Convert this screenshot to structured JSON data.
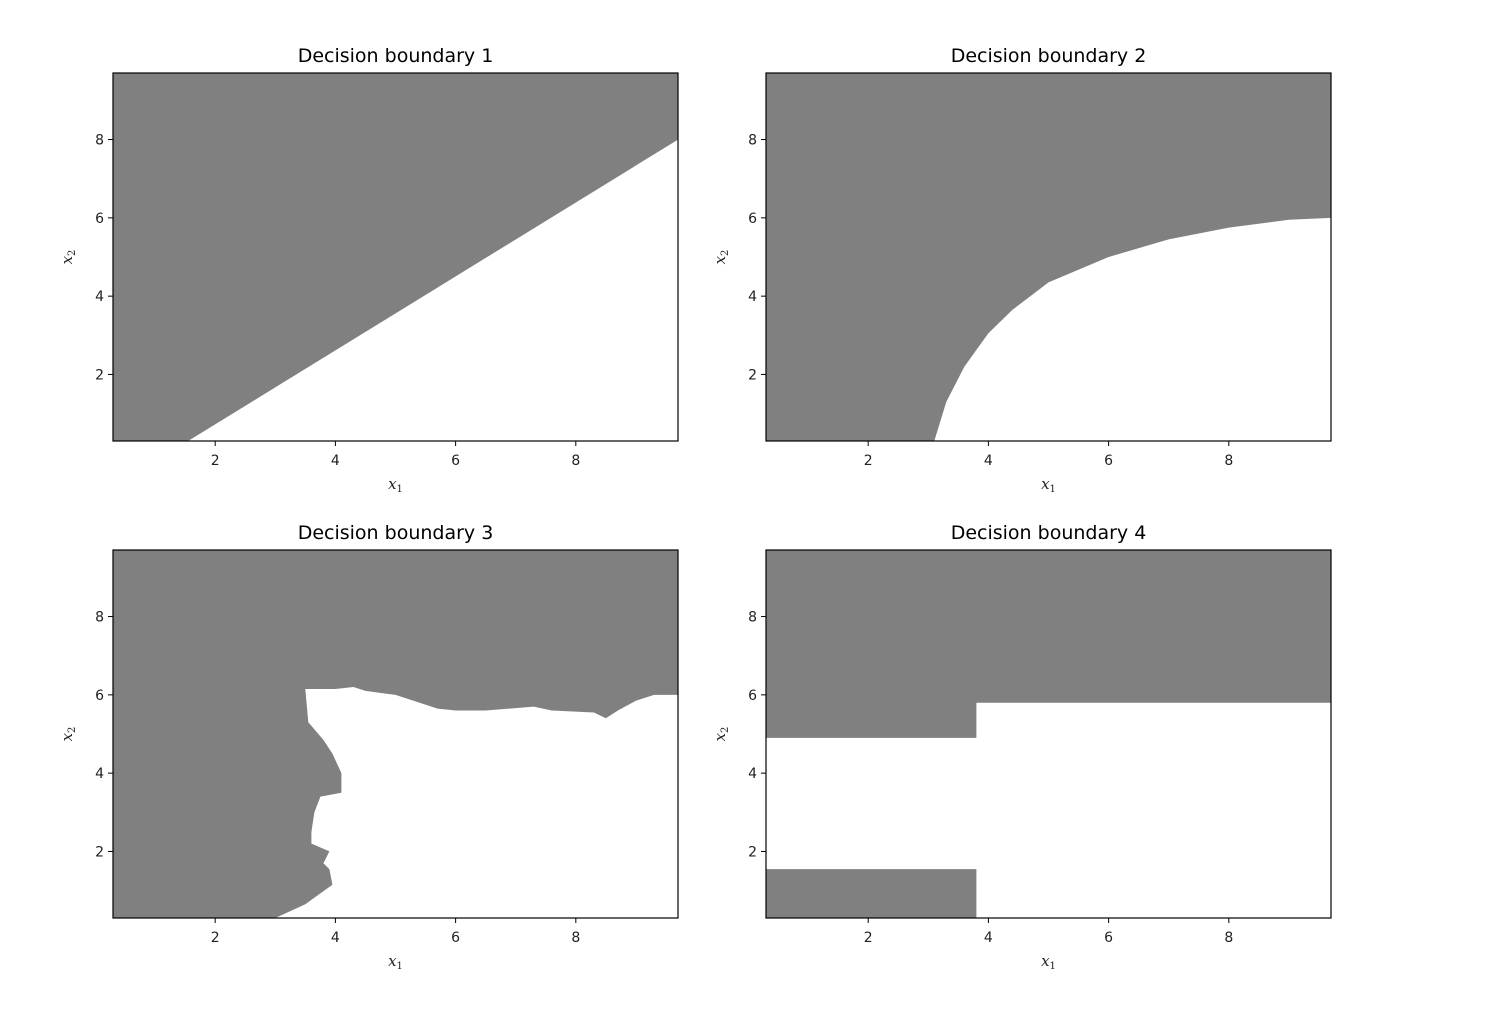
{
  "chart_data": [
    {
      "type": "area",
      "title": "Decision boundary 1",
      "xlabel": "x",
      "xlabel_sub": "1",
      "ylabel": "x",
      "ylabel_sub": "2",
      "xlim": [
        0.3,
        9.7
      ],
      "ylim": [
        0.3,
        9.7
      ],
      "xticks": [
        2,
        4,
        6,
        8
      ],
      "yticks": [
        2,
        4,
        6,
        8
      ],
      "colors": {
        "class_a": "#808080",
        "class_b": "#ffffff"
      },
      "grid": false,
      "white_region": [
        [
          1.55,
          0.3
        ],
        [
          9.7,
          0.3
        ],
        [
          9.7,
          8.0
        ]
      ]
    },
    {
      "type": "area",
      "title": "Decision boundary 2",
      "xlabel": "x",
      "xlabel_sub": "1",
      "ylabel": "x",
      "ylabel_sub": "2",
      "xlim": [
        0.3,
        9.7
      ],
      "ylim": [
        0.3,
        9.7
      ],
      "xticks": [
        2,
        4,
        6,
        8
      ],
      "yticks": [
        2,
        4,
        6,
        8
      ],
      "colors": {
        "class_a": "#808080",
        "class_b": "#ffffff"
      },
      "grid": false,
      "white_region": [
        [
          3.1,
          0.3
        ],
        [
          9.7,
          0.3
        ],
        [
          9.7,
          6.0
        ],
        [
          9.0,
          5.95
        ],
        [
          8.0,
          5.75
        ],
        [
          7.0,
          5.45
        ],
        [
          6.0,
          5.0
        ],
        [
          5.0,
          4.35
        ],
        [
          4.4,
          3.65
        ],
        [
          4.0,
          3.05
        ],
        [
          3.6,
          2.2
        ],
        [
          3.3,
          1.3
        ],
        [
          3.1,
          0.3
        ]
      ]
    },
    {
      "type": "area",
      "title": "Decision boundary 3",
      "xlabel": "x",
      "xlabel_sub": "1",
      "ylabel": "x",
      "ylabel_sub": "2",
      "xlim": [
        0.3,
        9.7
      ],
      "ylim": [
        0.3,
        9.7
      ],
      "xticks": [
        2,
        4,
        6,
        8
      ],
      "yticks": [
        2,
        4,
        6,
        8
      ],
      "colors": {
        "class_a": "#808080",
        "class_b": "#ffffff"
      },
      "grid": false,
      "white_region": [
        [
          3.0,
          0.3
        ],
        [
          9.7,
          0.3
        ],
        [
          9.7,
          6.0
        ],
        [
          9.3,
          6.0
        ],
        [
          9.0,
          5.85
        ],
        [
          8.7,
          5.6
        ],
        [
          8.5,
          5.4
        ],
        [
          8.3,
          5.55
        ],
        [
          7.6,
          5.6
        ],
        [
          7.3,
          5.7
        ],
        [
          6.5,
          5.6
        ],
        [
          6.0,
          5.6
        ],
        [
          5.7,
          5.65
        ],
        [
          5.3,
          5.85
        ],
        [
          5.0,
          6.0
        ],
        [
          4.5,
          6.1
        ],
        [
          4.3,
          6.2
        ],
        [
          4.0,
          6.15
        ],
        [
          3.5,
          6.15
        ],
        [
          3.55,
          5.3
        ],
        [
          3.8,
          4.85
        ],
        [
          3.95,
          4.5
        ],
        [
          4.1,
          4.0
        ],
        [
          4.1,
          3.5
        ],
        [
          3.75,
          3.4
        ],
        [
          3.65,
          3.0
        ],
        [
          3.6,
          2.5
        ],
        [
          3.6,
          2.2
        ],
        [
          3.9,
          2.0
        ],
        [
          3.8,
          1.7
        ],
        [
          3.9,
          1.55
        ],
        [
          3.95,
          1.15
        ],
        [
          3.5,
          0.65
        ],
        [
          3.0,
          0.3
        ]
      ]
    },
    {
      "type": "area",
      "title": "Decision boundary 4",
      "xlabel": "x",
      "xlabel_sub": "1",
      "ylabel": "x",
      "ylabel_sub": "2",
      "xlim": [
        0.3,
        9.7
      ],
      "ylim": [
        0.3,
        9.7
      ],
      "xticks": [
        2,
        4,
        6,
        8
      ],
      "yticks": [
        2,
        4,
        6,
        8
      ],
      "colors": {
        "class_a": "#808080",
        "class_b": "#ffffff"
      },
      "grid": false,
      "white_region": [
        [
          0.3,
          4.9
        ],
        [
          3.8,
          4.9
        ],
        [
          3.8,
          5.8
        ],
        [
          9.7,
          5.8
        ],
        [
          9.7,
          0.3
        ],
        [
          3.8,
          0.3
        ],
        [
          3.8,
          1.55
        ],
        [
          0.3,
          1.55
        ]
      ]
    }
  ]
}
